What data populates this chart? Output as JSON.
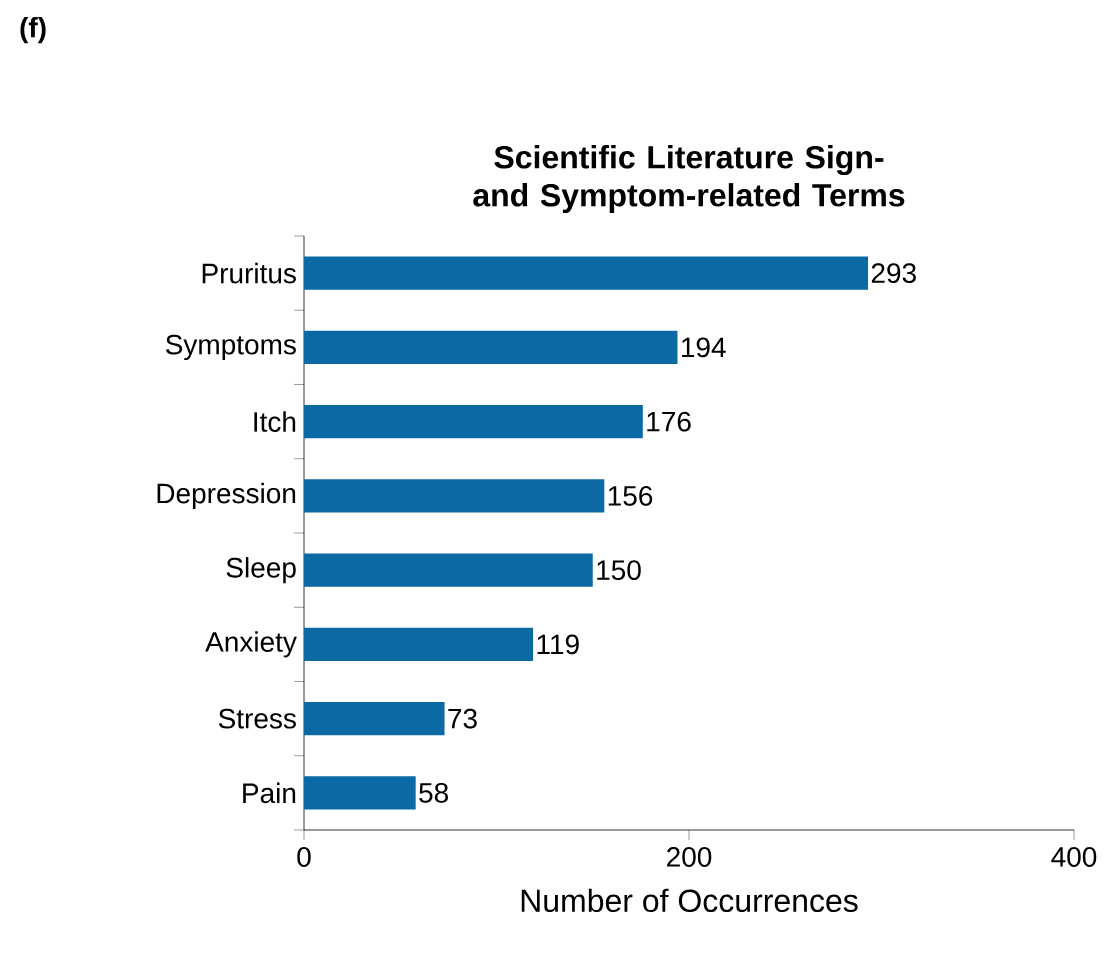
{
  "chart_data": {
    "type": "bar",
    "orientation": "horizontal",
    "title": "Scientific Literature Sign- and Symptom-related Terms",
    "categories": [
      "Pruritus",
      "Symptoms",
      "Itch",
      "Depression",
      "Sleep",
      "Anxiety",
      "Stress",
      "Pain"
    ],
    "values": [
      293,
      194,
      176,
      156,
      150,
      119,
      73,
      58
    ],
    "color": "#0b69a3",
    "xlim": [
      0,
      400
    ],
    "xticks": [
      0,
      200,
      400
    ],
    "xlabel": "Number of Occurrences",
    "data_labels": true,
    "grid": false,
    "annotations": [
      "(f)"
    ]
  }
}
